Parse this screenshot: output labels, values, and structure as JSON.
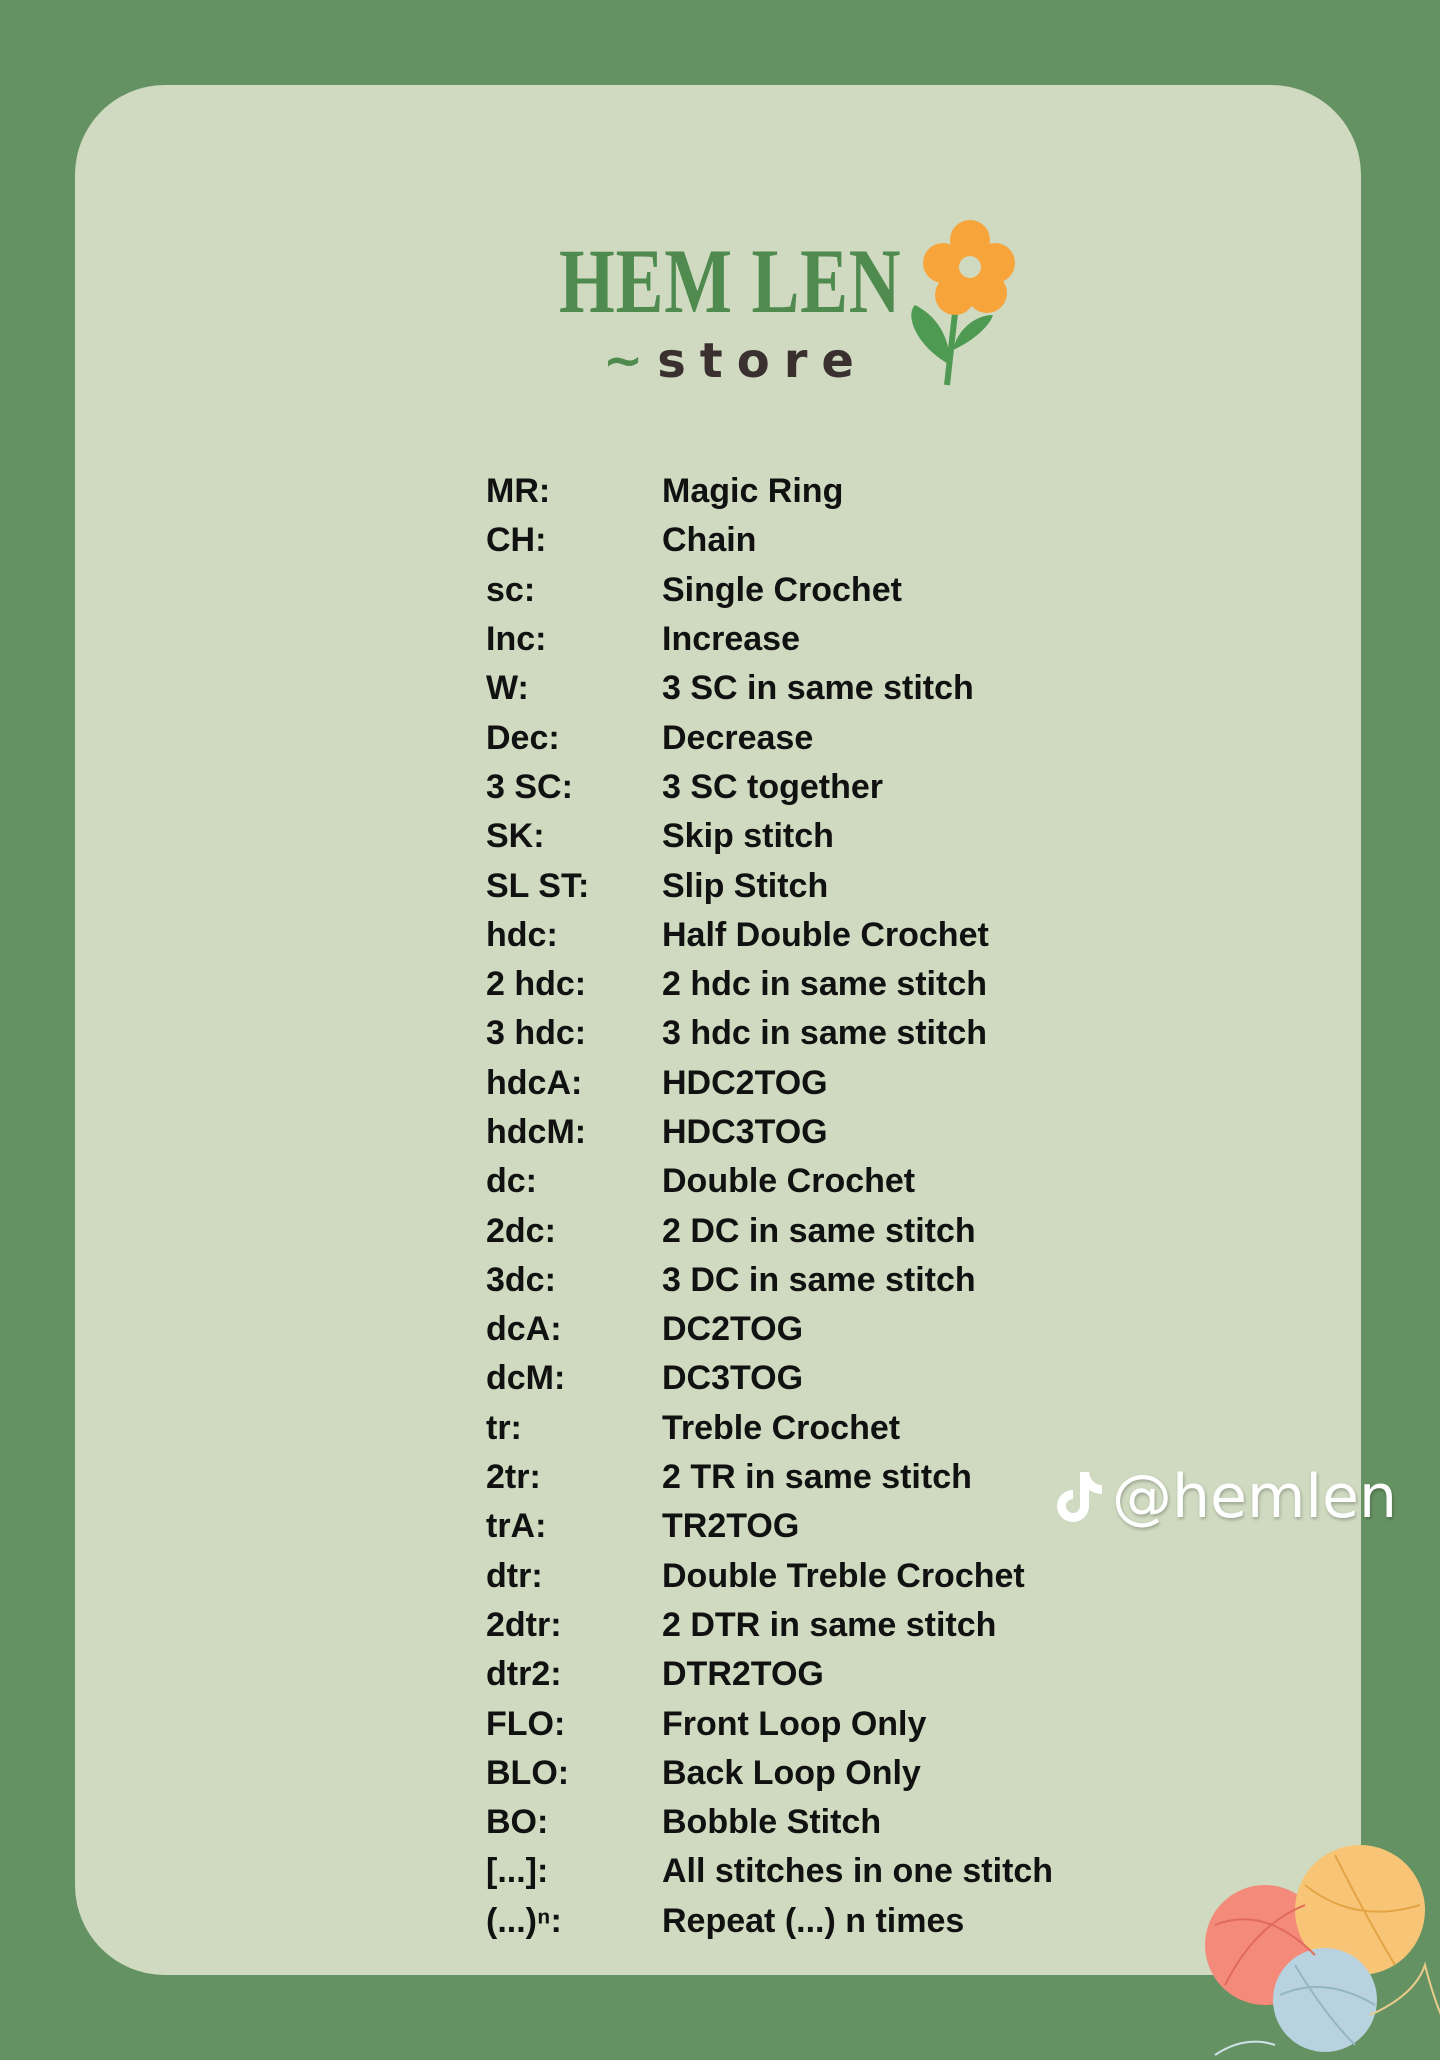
{
  "logo": {
    "brand": "HEM LEN",
    "sub": "store"
  },
  "colors": {
    "background": "#659263",
    "card": "#cfdac0",
    "brand_green": "#4f8a4f",
    "flower": "#f7a43a"
  },
  "glossary": [
    {
      "abbr": "MR:",
      "def": "Magic Ring"
    },
    {
      "abbr": "CH:",
      "def": "Chain"
    },
    {
      "abbr": "sc:",
      "def": "Single Crochet"
    },
    {
      "abbr": "Inc:",
      "def": "Increase"
    },
    {
      "abbr": "W:",
      "def": "3 SC in same stitch"
    },
    {
      "abbr": "Dec:",
      "def": "Decrease"
    },
    {
      "abbr": "3 SC:",
      "def": "3 SC together"
    },
    {
      "abbr": "SK:",
      "def": "Skip stitch"
    },
    {
      "abbr": "SL ST:",
      "def": "Slip Stitch"
    },
    {
      "abbr": "hdc:",
      "def": "Half Double Crochet"
    },
    {
      "abbr": "2 hdc:",
      "def": "2 hdc in same stitch"
    },
    {
      "abbr": "3 hdc:",
      "def": "3 hdc in same stitch"
    },
    {
      "abbr": "hdcA:",
      "def": "HDC2TOG"
    },
    {
      "abbr": "hdcM:",
      "def": "HDC3TOG"
    },
    {
      "abbr": "dc:",
      "def": "Double Crochet"
    },
    {
      "abbr": "2dc:",
      "def": "2 DC in same stitch"
    },
    {
      "abbr": "3dc:",
      "def": "3 DC in same stitch"
    },
    {
      "abbr": "dcA:",
      "def": "DC2TOG"
    },
    {
      "abbr": "dcM:",
      "def": "DC3TOG"
    },
    {
      "abbr": "tr:",
      "def": "Treble Crochet"
    },
    {
      "abbr": "2tr:",
      "def": "2 TR in same stitch"
    },
    {
      "abbr": "trA:",
      "def": "TR2TOG"
    },
    {
      "abbr": "dtr:",
      "def": "Double Treble Crochet"
    },
    {
      "abbr": "2dtr:",
      "def": "2 DTR in same stitch"
    },
    {
      "abbr": "dtr2:",
      "def": "DTR2TOG"
    },
    {
      "abbr": "FLO:",
      "def": "Front Loop Only"
    },
    {
      "abbr": "BLO:",
      "def": "Back Loop Only"
    },
    {
      "abbr": "BO:",
      "def": "Bobble Stitch"
    },
    {
      "abbr": "[...]:",
      "def": "All stitches in one stitch"
    },
    {
      "abbr": "(...)ⁿ:",
      "def": "Repeat (...) n times"
    }
  ],
  "watermark": {
    "icon": "tiktok-icon",
    "handle": "@hemlen"
  }
}
